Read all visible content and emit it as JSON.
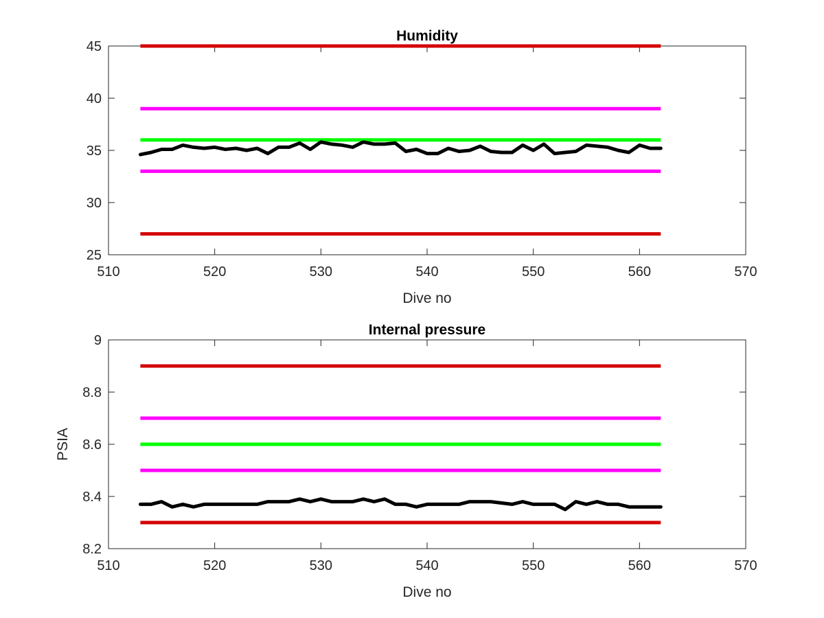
{
  "chart_data": [
    {
      "type": "line",
      "title": "Humidity",
      "xlabel": "Dive no",
      "ylabel": "",
      "xlim": [
        510,
        570
      ],
      "ylim": [
        25,
        45
      ],
      "xticks": [
        "510",
        "520",
        "530",
        "540",
        "550",
        "560",
        "570"
      ],
      "yticks": [
        "25",
        "30",
        "35",
        "40",
        "45"
      ],
      "grid": false,
      "reference_lines": [
        {
          "y": 45,
          "x": [
            513,
            562
          ],
          "color": "#d40000"
        },
        {
          "y": 39,
          "x": [
            513,
            562
          ],
          "color": "#ff00ff"
        },
        {
          "y": 36,
          "x": [
            513,
            562
          ],
          "color": "#00ff00"
        },
        {
          "y": 33,
          "x": [
            513,
            562
          ],
          "color": "#ff00ff"
        },
        {
          "y": 27,
          "x": [
            513,
            562
          ],
          "color": "#d40000"
        }
      ],
      "series": [
        {
          "color": "#000000",
          "x": [
            513,
            514,
            515,
            516,
            517,
            518,
            519,
            520,
            521,
            522,
            523,
            524,
            525,
            526,
            527,
            528,
            529,
            530,
            531,
            532,
            533,
            534,
            535,
            536,
            537,
            538,
            539,
            540,
            541,
            542,
            543,
            544,
            545,
            546,
            547,
            548,
            549,
            550,
            551,
            552,
            553,
            554,
            555,
            556,
            557,
            558,
            559,
            560,
            561,
            562
          ],
          "y": [
            34.6,
            34.8,
            35.1,
            35.1,
            35.5,
            35.3,
            35.2,
            35.3,
            35.1,
            35.2,
            35.0,
            35.2,
            34.7,
            35.3,
            35.3,
            35.7,
            35.1,
            35.8,
            35.6,
            35.5,
            35.3,
            35.8,
            35.6,
            35.6,
            35.7,
            34.9,
            35.1,
            34.7,
            34.7,
            35.2,
            34.9,
            35.0,
            35.4,
            34.9,
            34.8,
            34.8,
            35.5,
            35.0,
            35.6,
            34.7,
            34.8,
            34.9,
            35.5,
            35.4,
            35.3,
            35.0,
            34.8,
            35.5,
            35.2,
            35.2
          ]
        }
      ]
    },
    {
      "type": "line",
      "title": "Internal pressure",
      "xlabel": "Dive no",
      "ylabel": "PSIA",
      "xlim": [
        510,
        570
      ],
      "ylim": [
        8.2,
        9.0
      ],
      "xticks": [
        "510",
        "520",
        "530",
        "540",
        "550",
        "560",
        "570"
      ],
      "yticks": [
        "8.2",
        "8.4",
        "8.6",
        "8.8",
        "9"
      ],
      "grid": false,
      "reference_lines": [
        {
          "y": 8.9,
          "x": [
            513,
            562
          ],
          "color": "#d40000"
        },
        {
          "y": 8.7,
          "x": [
            513,
            562
          ],
          "color": "#ff00ff"
        },
        {
          "y": 8.6,
          "x": [
            513,
            562
          ],
          "color": "#00ff00"
        },
        {
          "y": 8.5,
          "x": [
            513,
            562
          ],
          "color": "#ff00ff"
        },
        {
          "y": 8.3,
          "x": [
            513,
            562
          ],
          "color": "#d40000"
        }
      ],
      "series": [
        {
          "color": "#000000",
          "x": [
            513,
            514,
            515,
            516,
            517,
            518,
            519,
            520,
            521,
            522,
            523,
            524,
            525,
            526,
            527,
            528,
            529,
            530,
            531,
            532,
            533,
            534,
            535,
            536,
            537,
            538,
            539,
            540,
            541,
            542,
            543,
            544,
            545,
            546,
            547,
            548,
            549,
            550,
            551,
            552,
            553,
            554,
            555,
            556,
            557,
            558,
            559,
            560,
            561,
            562
          ],
          "y": [
            8.37,
            8.37,
            8.38,
            8.36,
            8.37,
            8.36,
            8.37,
            8.37,
            8.37,
            8.37,
            8.37,
            8.37,
            8.38,
            8.38,
            8.38,
            8.39,
            8.38,
            8.39,
            8.38,
            8.38,
            8.38,
            8.39,
            8.38,
            8.39,
            8.37,
            8.37,
            8.36,
            8.37,
            8.37,
            8.37,
            8.37,
            8.38,
            8.38,
            8.38,
            8.375,
            8.37,
            8.38,
            8.37,
            8.37,
            8.37,
            8.35,
            8.38,
            8.37,
            8.38,
            8.37,
            8.37,
            8.36,
            8.36,
            8.36,
            8.36
          ]
        }
      ]
    }
  ]
}
